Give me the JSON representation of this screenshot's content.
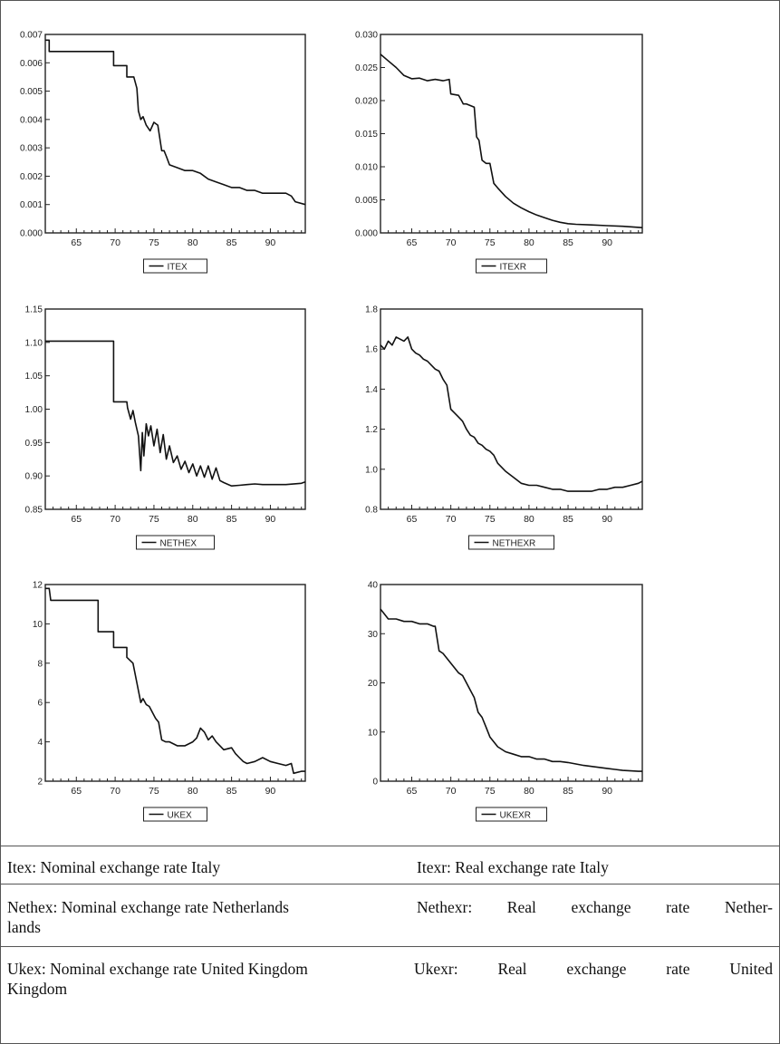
{
  "chart_data": [
    {
      "type": "line",
      "legend": "ITEX",
      "x_ticks": [
        "65",
        "70",
        "75",
        "80",
        "85",
        "90"
      ],
      "xlim": [
        1961,
        1994.5
      ],
      "y_ticks": [
        "0.000",
        "0.001",
        "0.002",
        "0.003",
        "0.004",
        "0.005",
        "0.006",
        "0.007"
      ],
      "ylim": [
        0.0,
        0.007
      ],
      "x": [
        1961,
        1961.5,
        1961.5,
        1969.8,
        1969.8,
        1971.5,
        1971.5,
        1972.2,
        1972.4,
        1972.8,
        1973.0,
        1973.1,
        1973.3,
        1973.6,
        1974.0,
        1974.5,
        1975.0,
        1975.5,
        1976.0,
        1976.3,
        1976.6,
        1977.0,
        1978.0,
        1979.0,
        1980.0,
        1981.0,
        1982.0,
        1983.0,
        1984.0,
        1985.0,
        1986.0,
        1987.0,
        1988.0,
        1989.0,
        1990.0,
        1991.0,
        1992.0,
        1992.7,
        1993.2,
        1994.5
      ],
      "y": [
        0.0068,
        0.0068,
        0.0064,
        0.0064,
        0.0059,
        0.0059,
        0.0055,
        0.0055,
        0.0055,
        0.0051,
        0.0043,
        0.0042,
        0.004,
        0.0041,
        0.0038,
        0.0036,
        0.0039,
        0.0038,
        0.0029,
        0.0029,
        0.0027,
        0.0024,
        0.0023,
        0.0022,
        0.0022,
        0.0021,
        0.0019,
        0.0018,
        0.0017,
        0.0016,
        0.0016,
        0.0015,
        0.0015,
        0.0014,
        0.0014,
        0.0014,
        0.0014,
        0.0013,
        0.0011,
        0.001
      ]
    },
    {
      "type": "line",
      "legend": "ITEXR",
      "x_ticks": [
        "65",
        "70",
        "75",
        "80",
        "85",
        "90"
      ],
      "xlim": [
        1961,
        1994.5
      ],
      "y_ticks": [
        "0.000",
        "0.005",
        "0.010",
        "0.015",
        "0.020",
        "0.025",
        "0.030"
      ],
      "ylim": [
        0.0,
        0.03
      ],
      "x": [
        1961,
        1962,
        1963,
        1964,
        1965,
        1966,
        1967,
        1968,
        1969,
        1969.8,
        1970,
        1971,
        1971.6,
        1972,
        1973,
        1973.3,
        1973.6,
        1974,
        1974.5,
        1975,
        1975.5,
        1976,
        1977,
        1978,
        1979,
        1980,
        1981,
        1982,
        1983,
        1984,
        1985,
        1986,
        1988,
        1990,
        1992,
        1994.5
      ],
      "y": [
        0.027,
        0.026,
        0.025,
        0.0238,
        0.0233,
        0.0234,
        0.023,
        0.0232,
        0.023,
        0.0232,
        0.021,
        0.0208,
        0.0195,
        0.0195,
        0.019,
        0.0145,
        0.014,
        0.011,
        0.0105,
        0.0105,
        0.0075,
        0.0068,
        0.0055,
        0.0045,
        0.0038,
        0.0032,
        0.0027,
        0.0023,
        0.0019,
        0.0016,
        0.0014,
        0.0013,
        0.0012,
        0.0011,
        0.001,
        0.0008
      ]
    },
    {
      "type": "line",
      "legend": "NETHEX",
      "x_ticks": [
        "65",
        "70",
        "75",
        "80",
        "85",
        "90"
      ],
      "xlim": [
        1961,
        1994.5
      ],
      "y_ticks": [
        "0.85",
        "0.90",
        "0.95",
        "1.00",
        "1.05",
        "1.10",
        "1.15"
      ],
      "ylim": [
        0.85,
        1.15
      ],
      "x": [
        1961,
        1969.8,
        1969.8,
        1971.5,
        1971.6,
        1972.0,
        1972.3,
        1972.6,
        1973.0,
        1973.3,
        1973.5,
        1973.7,
        1974.0,
        1974.3,
        1974.6,
        1975.0,
        1975.4,
        1975.8,
        1976.2,
        1976.6,
        1977.0,
        1977.5,
        1978.0,
        1978.5,
        1979.0,
        1979.5,
        1980.0,
        1980.5,
        1981.0,
        1981.5,
        1982.0,
        1982.5,
        1983.0,
        1983.5,
        1984.0,
        1985.0,
        1986.0,
        1987.0,
        1988.0,
        1989.0,
        1990.0,
        1992.0,
        1994.0,
        1994.5
      ],
      "y": [
        1.102,
        1.102,
        1.011,
        1.011,
        1.002,
        0.985,
        0.998,
        0.98,
        0.96,
        0.908,
        0.965,
        0.93,
        0.978,
        0.96,
        0.975,
        0.945,
        0.97,
        0.935,
        0.962,
        0.925,
        0.945,
        0.92,
        0.93,
        0.91,
        0.922,
        0.905,
        0.918,
        0.9,
        0.915,
        0.898,
        0.915,
        0.895,
        0.912,
        0.893,
        0.89,
        0.885,
        0.886,
        0.887,
        0.888,
        0.887,
        0.887,
        0.887,
        0.889,
        0.891
      ]
    },
    {
      "type": "line",
      "legend": "NETHEXR",
      "x_ticks": [
        "65",
        "70",
        "75",
        "80",
        "85",
        "90"
      ],
      "xlim": [
        1961,
        1994.5
      ],
      "y_ticks": [
        "0.8",
        "1.0",
        "1.2",
        "1.4",
        "1.6",
        "1.8"
      ],
      "ylim": [
        0.8,
        1.8
      ],
      "x": [
        1961,
        1961.5,
        1962,
        1962.5,
        1963,
        1963.5,
        1964,
        1964.5,
        1965,
        1965.5,
        1966,
        1966.5,
        1967,
        1967.5,
        1968,
        1968.5,
        1969,
        1969.5,
        1970,
        1970.5,
        1971,
        1971.5,
        1972,
        1972.5,
        1973,
        1973.5,
        1974,
        1974.5,
        1975,
        1975.5,
        1976,
        1976.5,
        1977,
        1978,
        1979,
        1980,
        1981,
        1982,
        1983,
        1984,
        1985,
        1986,
        1987,
        1988,
        1989,
        1990,
        1991,
        1992,
        1993,
        1994,
        1994.5
      ],
      "y": [
        1.62,
        1.6,
        1.64,
        1.62,
        1.66,
        1.65,
        1.64,
        1.66,
        1.6,
        1.58,
        1.57,
        1.55,
        1.54,
        1.52,
        1.5,
        1.49,
        1.45,
        1.42,
        1.3,
        1.28,
        1.26,
        1.24,
        1.2,
        1.17,
        1.16,
        1.13,
        1.12,
        1.1,
        1.09,
        1.07,
        1.03,
        1.01,
        0.99,
        0.96,
        0.93,
        0.92,
        0.92,
        0.91,
        0.9,
        0.9,
        0.89,
        0.89,
        0.89,
        0.89,
        0.9,
        0.9,
        0.91,
        0.91,
        0.92,
        0.93,
        0.94
      ]
    },
    {
      "type": "line",
      "legend": "UKEX",
      "x_ticks": [
        "65",
        "70",
        "75",
        "80",
        "85",
        "90"
      ],
      "xlim": [
        1961,
        1994.5
      ],
      "y_ticks": [
        "2",
        "4",
        "6",
        "8",
        "10",
        "12"
      ],
      "ylim": [
        2,
        12
      ],
      "x": [
        1961,
        1961.5,
        1961.7,
        1967.8,
        1967.8,
        1969.8,
        1969.8,
        1971.5,
        1971.5,
        1972.3,
        1972.8,
        1973.3,
        1973.6,
        1974.0,
        1974.4,
        1974.8,
        1975.2,
        1975.6,
        1976.0,
        1976.5,
        1977.0,
        1978.0,
        1979.0,
        1980.0,
        1980.5,
        1981.0,
        1981.5,
        1982.0,
        1982.5,
        1983.0,
        1983.5,
        1984.0,
        1985.0,
        1985.5,
        1986.0,
        1986.5,
        1987.0,
        1988.0,
        1989.0,
        1990.0,
        1991.0,
        1992.0,
        1992.7,
        1993.0,
        1994.0,
        1994.5
      ],
      "y": [
        11.8,
        11.8,
        11.2,
        11.2,
        9.6,
        9.6,
        8.8,
        8.8,
        8.3,
        8.0,
        7.0,
        6.0,
        6.2,
        5.9,
        5.8,
        5.5,
        5.2,
        5.0,
        4.1,
        4.0,
        4.0,
        3.8,
        3.8,
        4.0,
        4.2,
        4.7,
        4.5,
        4.1,
        4.3,
        4.0,
        3.8,
        3.6,
        3.7,
        3.4,
        3.2,
        3.0,
        2.9,
        3.0,
        3.2,
        3.0,
        2.9,
        2.8,
        2.9,
        2.4,
        2.5,
        2.5
      ]
    },
    {
      "type": "line",
      "legend": "UKEXR",
      "x_ticks": [
        "65",
        "70",
        "75",
        "80",
        "85",
        "90"
      ],
      "xlim": [
        1961,
        1994.5
      ],
      "y_ticks": [
        "0",
        "10",
        "20",
        "30",
        "40"
      ],
      "ylim": [
        0,
        40
      ],
      "x": [
        1961,
        1961.5,
        1962,
        1963,
        1964,
        1965,
        1966,
        1967,
        1967.8,
        1968,
        1968.5,
        1969,
        1970,
        1971,
        1971.5,
        1972,
        1973,
        1973.5,
        1974,
        1974.5,
        1975,
        1975.5,
        1976,
        1977,
        1978,
        1979,
        1980,
        1981,
        1982,
        1983,
        1984,
        1985,
        1986,
        1987,
        1988,
        1989,
        1990,
        1991,
        1992,
        1993,
        1994,
        1994.5
      ],
      "y": [
        35,
        34,
        33,
        33,
        32.5,
        32.5,
        32,
        32,
        31.5,
        31.5,
        26.5,
        26,
        24,
        22,
        21.5,
        20,
        17,
        14,
        13,
        11,
        9,
        8,
        7,
        6,
        5.5,
        5,
        5,
        4.5,
        4.5,
        4,
        4,
        3.8,
        3.5,
        3.2,
        3,
        2.8,
        2.6,
        2.4,
        2.2,
        2.1,
        2,
        2
      ]
    }
  ],
  "captions": [
    {
      "left": "Itex: Nominal exchange rate Italy",
      "right": "Itexr: Real exchange rate Italy"
    },
    {
      "left": "Nethex: Nominal exchange rate Netherlands",
      "right": "Nethexr: Real exchange rate Nether-",
      "continuation": "lands"
    },
    {
      "left": "Ukex: Nominal exchange rate United Kingdom",
      "right": "Ukexr: Real exchange rate United",
      "continuation": "Kingdom"
    }
  ]
}
